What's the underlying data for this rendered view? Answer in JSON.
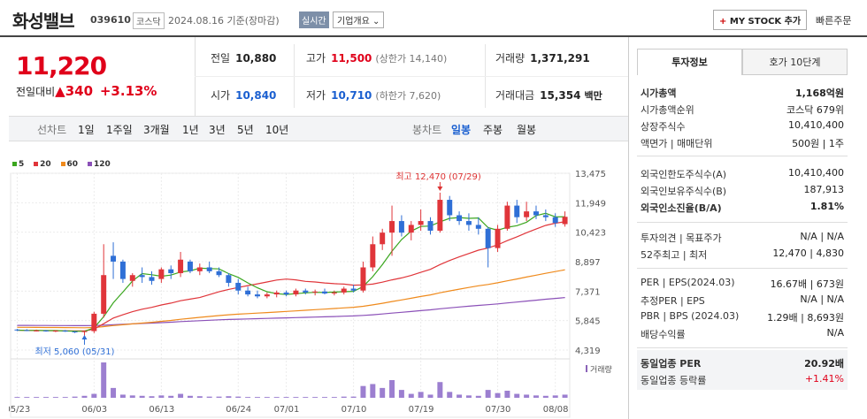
{
  "header": {
    "name": "화성밸브",
    "code": "039610",
    "market": "코스닥",
    "date": "2024.08.16 기준(장마감)",
    "realtime": "실시간",
    "corp_info": "기업개요 ⌄",
    "mystock_plus": "+",
    "mystock_label": "MY STOCK 추가",
    "quick_order": "빠른주문"
  },
  "price": {
    "current": "11,220",
    "prev_label": "전일대비",
    "arrow": "▲",
    "change": "340",
    "rate": "+3.13%"
  },
  "stats": {
    "prev_k": "전일",
    "prev_v": "10,880",
    "high_k": "고가",
    "high_v": "11,500",
    "high_sub": "(상한가 14,140)",
    "vol_k": "거래량",
    "vol_v": "1,371,291",
    "open_k": "시가",
    "open_v": "10,840",
    "low_k": "저가",
    "low_v": "10,710",
    "low_sub": "(하한가 7,620)",
    "amt_k": "거래대금",
    "amt_v": "15,354",
    "amt_unit": "백만"
  },
  "periods": {
    "label": "선차트",
    "items": [
      "1일",
      "1주일",
      "3개월",
      "1년",
      "3년",
      "5년",
      "10년"
    ],
    "candle_label": "봉차트",
    "candles": [
      "일봉",
      "주봉",
      "월봉"
    ]
  },
  "legend": [
    {
      "label": "5",
      "color": "#3aa61e"
    },
    {
      "label": "20",
      "color": "#e0353a"
    },
    {
      "label": "60",
      "color": "#ef8a1c"
    },
    {
      "label": "120",
      "color": "#8b50b8"
    }
  ],
  "chart_data": {
    "type": "candlestick",
    "yticks": [
      "13,475",
      "11,949",
      "10,423",
      "8,897",
      "7,371",
      "5,845",
      "4,319"
    ],
    "xticks": [
      "05/23",
      "06/03",
      "06/13",
      "06/24",
      "07/01",
      "07/10",
      "07/19",
      "07/30",
      "08/08"
    ],
    "high_annotation": "최고 12,470 (07/29)",
    "low_annotation": "최저 5,060 (05/31)",
    "volume_label": "거래량",
    "candles": [
      [
        5380,
        5410,
        5300,
        5350
      ],
      [
        5350,
        5400,
        5300,
        5320
      ],
      [
        5320,
        5380,
        5280,
        5330
      ],
      [
        5330,
        5360,
        5270,
        5300
      ],
      [
        5300,
        5350,
        5250,
        5320
      ],
      [
        5320,
        5360,
        5260,
        5280
      ],
      [
        5280,
        5300,
        5200,
        5250
      ],
      [
        5250,
        5330,
        5060,
        5300
      ],
      [
        5300,
        6300,
        5200,
        6200
      ],
      [
        6200,
        9800,
        6000,
        8200
      ],
      [
        9200,
        9900,
        8000,
        8900
      ],
      [
        8900,
        9000,
        7800,
        8000
      ],
      [
        7900,
        8300,
        7600,
        8200
      ],
      [
        8200,
        8600,
        7800,
        8100
      ],
      [
        8100,
        8400,
        7700,
        7900
      ],
      [
        8000,
        8600,
        7800,
        8500
      ],
      [
        8500,
        8700,
        8000,
        8300
      ],
      [
        8300,
        9400,
        8100,
        9000
      ],
      [
        8900,
        9000,
        8300,
        8400
      ],
      [
        8400,
        8800,
        8200,
        8600
      ],
      [
        8600,
        8900,
        8300,
        8400
      ],
      [
        8400,
        8600,
        8100,
        8200
      ],
      [
        8200,
        8300,
        7600,
        7800
      ],
      [
        7800,
        8000,
        7200,
        7400
      ],
      [
        7400,
        7600,
        7100,
        7200
      ],
      [
        7200,
        7400,
        7000,
        7100
      ],
      [
        7100,
        7300,
        7000,
        7200
      ],
      [
        7200,
        7400,
        7050,
        7300
      ],
      [
        7300,
        7400,
        7100,
        7200
      ],
      [
        7200,
        7500,
        7100,
        7400
      ],
      [
        7400,
        7500,
        7200,
        7300
      ],
      [
        7300,
        7450,
        7150,
        7350
      ],
      [
        7350,
        7500,
        7200,
        7250
      ],
      [
        7250,
        7400,
        7150,
        7300
      ],
      [
        7300,
        7600,
        7200,
        7500
      ],
      [
        7500,
        7700,
        7300,
        7400
      ],
      [
        7400,
        8900,
        7300,
        8600
      ],
      [
        8600,
        10200,
        8400,
        9800
      ],
      [
        9800,
        10600,
        9500,
        10400
      ],
      [
        10400,
        11800,
        9200,
        11000
      ],
      [
        11000,
        11300,
        10200,
        10400
      ],
      [
        10400,
        11000,
        10000,
        10800
      ],
      [
        10800,
        11600,
        10500,
        11000
      ],
      [
        11000,
        11200,
        10300,
        10500
      ],
      [
        10500,
        12470,
        10400,
        12100
      ],
      [
        12100,
        12300,
        11000,
        11300
      ],
      [
        11300,
        11500,
        10800,
        11000
      ],
      [
        11000,
        11400,
        10500,
        10800
      ],
      [
        10800,
        11200,
        10300,
        10600
      ],
      [
        10600,
        10700,
        8600,
        9600
      ],
      [
        9600,
        10800,
        9400,
        10600
      ],
      [
        10600,
        12000,
        10500,
        11800
      ],
      [
        11800,
        12100,
        10900,
        11200
      ],
      [
        11200,
        12000,
        11000,
        11500
      ],
      [
        11500,
        11800,
        11100,
        11300
      ],
      [
        11300,
        11600,
        11000,
        11200
      ],
      [
        11200,
        11400,
        10700,
        10900
      ],
      [
        10840,
        11500,
        10710,
        11220
      ]
    ],
    "volume": [
      2,
      2,
      2,
      2,
      2,
      2,
      3,
      5,
      10,
      90,
      25,
      8,
      6,
      5,
      4,
      6,
      5,
      10,
      5,
      4,
      3,
      3,
      4,
      3,
      2,
      2,
      2,
      2,
      2,
      2,
      2,
      2,
      2,
      2,
      3,
      3,
      30,
      35,
      25,
      45,
      20,
      10,
      15,
      8,
      40,
      15,
      8,
      6,
      5,
      20,
      12,
      18,
      10,
      8,
      6,
      5,
      6,
      8
    ]
  },
  "right_panel": {
    "tab_on": "투자정보",
    "tab_off": "호가 10단계",
    "rows": [
      {
        "k": "시가총액",
        "v": "1,168억원",
        "bold": true
      },
      {
        "k": "시가총액순위",
        "v": "코스닥 679위"
      },
      {
        "k": "상장주식수",
        "v": "10,410,400"
      },
      {
        "k": "액면가 | 매매단위",
        "v": "500원 | 1주"
      },
      {
        "k": "외국인한도주식수(A)",
        "v": "10,410,400"
      },
      {
        "k": "외국인보유주식수(B)",
        "v": "187,913"
      },
      {
        "k": "외국인소진율(B/A)",
        "v": "1.81%",
        "bold": true
      },
      {
        "k": "투자의견 | 목표주가",
        "v": "N/A | N/A"
      },
      {
        "k": "52주최고 | 최저",
        "v": "12,470 | 4,830"
      },
      {
        "k": "PER | EPS(2024.03)",
        "v": "16.67배 | 673원"
      },
      {
        "k": "추정PER | EPS",
        "v": "N/A | N/A"
      },
      {
        "k": "PBR | BPS (2024.03)",
        "v": "1.29배 | 8,693원"
      },
      {
        "k": "배당수익률",
        "v": "N/A"
      },
      {
        "k": "동일업종 PER",
        "v": "20.92배",
        "bold": true
      },
      {
        "k": "동일업종 등락률",
        "v": "+1.41%",
        "red": true
      }
    ]
  }
}
